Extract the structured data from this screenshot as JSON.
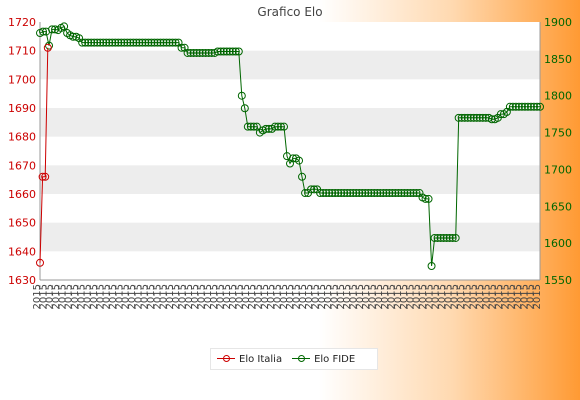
{
  "chart_data": {
    "type": "line",
    "title": "Grafico Elo",
    "xlabel": "",
    "ylabel": "",
    "left_axis": {
      "ylim": [
        1630,
        1720
      ],
      "ticks": [
        1630,
        1640,
        1650,
        1660,
        1670,
        1680,
        1690,
        1700,
        1710,
        1720
      ],
      "color": "#cc0000"
    },
    "right_axis": {
      "ylim": [
        1550,
        1900
      ],
      "ticks": [
        1550,
        1600,
        1650,
        1700,
        1750,
        1800,
        1850,
        1900
      ],
      "color": "#006600"
    },
    "grid": true,
    "legend_position": "bottom",
    "series": [
      {
        "name": "Elo Italia",
        "axis": "left",
        "color": "#cc0000",
        "values": [
          1636,
          1666,
          1666,
          1711
        ]
      },
      {
        "name": "Elo FIDE",
        "axis": "right",
        "color": "#006600",
        "values": [
          1885,
          1887,
          1887,
          1868,
          1890,
          1890,
          1889,
          1892,
          1894,
          1885,
          1882,
          1880,
          1880,
          1878,
          1872,
          1872,
          1872,
          1872,
          1872,
          1872,
          1872,
          1872,
          1872,
          1872,
          1872,
          1872,
          1872,
          1872,
          1872,
          1872,
          1872,
          1872,
          1872,
          1872,
          1872,
          1872,
          1872,
          1872,
          1872,
          1872,
          1872,
          1872,
          1872,
          1872,
          1872,
          1872,
          1872,
          1865,
          1865,
          1858,
          1858,
          1858,
          1858,
          1858,
          1858,
          1858,
          1858,
          1858,
          1858,
          1860,
          1860,
          1860,
          1860,
          1860,
          1860,
          1860,
          1860,
          1800,
          1783,
          1758,
          1758,
          1758,
          1758,
          1750,
          1753,
          1755,
          1755,
          1755,
          1758,
          1758,
          1758,
          1758,
          1718,
          1708,
          1715,
          1715,
          1712,
          1690,
          1668,
          1668,
          1673,
          1673,
          1673,
          1668,
          1668,
          1668,
          1668,
          1668,
          1668,
          1668,
          1668,
          1668,
          1668,
          1668,
          1668,
          1668,
          1668,
          1668,
          1668,
          1668,
          1668,
          1668,
          1668,
          1668,
          1668,
          1668,
          1668,
          1668,
          1668,
          1668,
          1668,
          1668,
          1668,
          1668,
          1668,
          1668,
          1668,
          1662,
          1660,
          1660,
          1569,
          1607,
          1607,
          1607,
          1607,
          1607,
          1607,
          1607,
          1607,
          1770,
          1770,
          1770,
          1770,
          1770,
          1770,
          1770,
          1770,
          1770,
          1770,
          1770,
          1768,
          1768,
          1770,
          1775,
          1775,
          1778,
          1785,
          1785,
          1785,
          1785,
          1785,
          1785,
          1785,
          1785,
          1785,
          1785,
          1785
        ]
      }
    ]
  },
  "x_tick_labels": [
    "2015",
    "2015",
    "2015",
    "2015",
    "2015",
    "2015",
    "2015",
    "2015",
    "2015",
    "2015",
    "2015",
    "2015",
    "2015",
    "2015",
    "2015",
    "2015",
    "2015",
    "2015",
    "2015",
    "2015",
    "2015",
    "2015",
    "2015",
    "2015",
    "2015",
    "2015",
    "2015",
    "2015",
    "2015",
    "2015",
    "2015",
    "2015",
    "2015",
    "2015",
    "2015",
    "2015",
    "2015",
    "2015",
    "2015",
    "2015",
    "2015",
    "2015",
    "2015",
    "2015",
    "2015",
    "2015",
    "2015",
    "2015",
    "2015",
    "2015",
    "2015",
    "2015",
    "2015",
    "2015",
    "2015",
    "2015",
    "2015",
    "2015",
    "2015",
    "2015",
    "2015",
    "2015",
    "2015",
    "2015",
    "2015",
    "2015",
    "2015",
    "2015",
    "2015",
    "2015",
    "2015",
    "2015",
    "2015",
    "2015",
    "2015",
    "2015",
    "2015",
    "2015",
    "2015",
    "2015"
  ],
  "legend": {
    "items": [
      {
        "label": "Elo Italia",
        "color": "#cc0000"
      },
      {
        "label": "Elo FIDE",
        "color": "#006600"
      }
    ]
  },
  "colors": {
    "grid_band": "#ededed",
    "axis_line": "#999999"
  }
}
